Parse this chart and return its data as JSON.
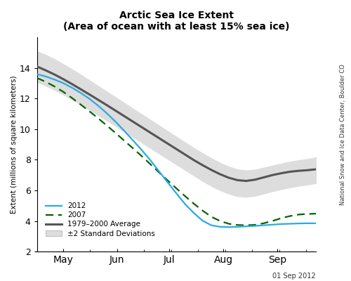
{
  "title": "Arctic Sea Ice Extent",
  "subtitle": "(Area of ocean with at least 15% sea ice)",
  "ylabel": "Extent (millions of square kilometers)",
  "source_text": "National Snow and Ice Data Center, Boulder CO",
  "date_text": "01 Sep 2012",
  "ylim": [
    2,
    16
  ],
  "yticks": [
    2,
    4,
    6,
    8,
    10,
    12,
    14
  ],
  "xtick_labels": [
    "May",
    "Jun",
    "Jul",
    "Aug",
    "Sep"
  ],
  "legend_labels": [
    "2012",
    "2007",
    "1979–2000 Average",
    "±2 Standard Deviations"
  ],
  "avg_color": "#555555",
  "color_2012": "#29ABE2",
  "color_2007": "#006400",
  "shade_color": "#DDDDDD",
  "avg_x": [
    0,
    5,
    10,
    15,
    20,
    25,
    30,
    35,
    40,
    45,
    50,
    55,
    60,
    65,
    70,
    75,
    80,
    85,
    90,
    95,
    100,
    105,
    110,
    115,
    120,
    125,
    130,
    135,
    140,
    145,
    150,
    155,
    160
  ],
  "avg_y": [
    14.1,
    13.85,
    13.58,
    13.28,
    12.96,
    12.62,
    12.28,
    11.93,
    11.58,
    11.22,
    10.86,
    10.5,
    10.14,
    9.78,
    9.42,
    9.06,
    8.7,
    8.34,
    7.98,
    7.65,
    7.34,
    7.06,
    6.83,
    6.67,
    6.62,
    6.7,
    6.85,
    7.0,
    7.12,
    7.22,
    7.28,
    7.32,
    7.38
  ],
  "std_upper": [
    15.1,
    14.85,
    14.58,
    14.25,
    13.92,
    13.57,
    13.2,
    12.83,
    12.46,
    12.09,
    11.72,
    11.35,
    10.98,
    10.61,
    10.24,
    9.87,
    9.5,
    9.13,
    8.76,
    8.42,
    8.1,
    7.8,
    7.55,
    7.37,
    7.3,
    7.35,
    7.48,
    7.62,
    7.75,
    7.87,
    7.97,
    8.05,
    8.15
  ],
  "std_lower": [
    13.1,
    12.85,
    12.58,
    12.28,
    11.96,
    11.62,
    11.28,
    10.93,
    10.58,
    10.22,
    9.86,
    9.5,
    9.14,
    8.78,
    8.42,
    8.06,
    7.7,
    7.34,
    6.98,
    6.62,
    6.3,
    6.02,
    5.79,
    5.63,
    5.58,
    5.65,
    5.8,
    5.95,
    6.08,
    6.2,
    6.3,
    6.38,
    6.48
  ],
  "x_2012": [
    0,
    5,
    10,
    15,
    20,
    25,
    30,
    35,
    40,
    45,
    50,
    55,
    60,
    65,
    70,
    75,
    80,
    85,
    90,
    95,
    100,
    105,
    110,
    115,
    120,
    125,
    130,
    135,
    140,
    145,
    150,
    155,
    160
  ],
  "y_2012": [
    13.6,
    13.45,
    13.25,
    13.02,
    12.72,
    12.38,
    12.0,
    11.55,
    11.05,
    10.5,
    9.9,
    9.28,
    8.65,
    7.98,
    7.25,
    6.52,
    5.8,
    5.1,
    4.52,
    4.02,
    3.72,
    3.62,
    3.6,
    3.62,
    3.65,
    3.68,
    3.72,
    3.76,
    3.8,
    3.82,
    3.84,
    3.85,
    3.85
  ],
  "x_2007": [
    0,
    5,
    10,
    15,
    20,
    25,
    30,
    35,
    40,
    45,
    50,
    55,
    60,
    65,
    70,
    75,
    80,
    85,
    90,
    95,
    100,
    105,
    110,
    115,
    120,
    125,
    130,
    135,
    140,
    145,
    150,
    155,
    160
  ],
  "y_2007": [
    13.35,
    13.1,
    12.8,
    12.45,
    12.05,
    11.62,
    11.18,
    10.72,
    10.25,
    9.76,
    9.26,
    8.76,
    8.25,
    7.72,
    7.18,
    6.65,
    6.13,
    5.62,
    5.13,
    4.68,
    4.28,
    4.0,
    3.82,
    3.74,
    3.72,
    3.75,
    3.85,
    4.0,
    4.18,
    4.32,
    4.42,
    4.46,
    4.48
  ],
  "n_days": 160,
  "month_ticks_x": [
    15,
    46,
    76,
    107,
    138
  ],
  "xmax": 160
}
